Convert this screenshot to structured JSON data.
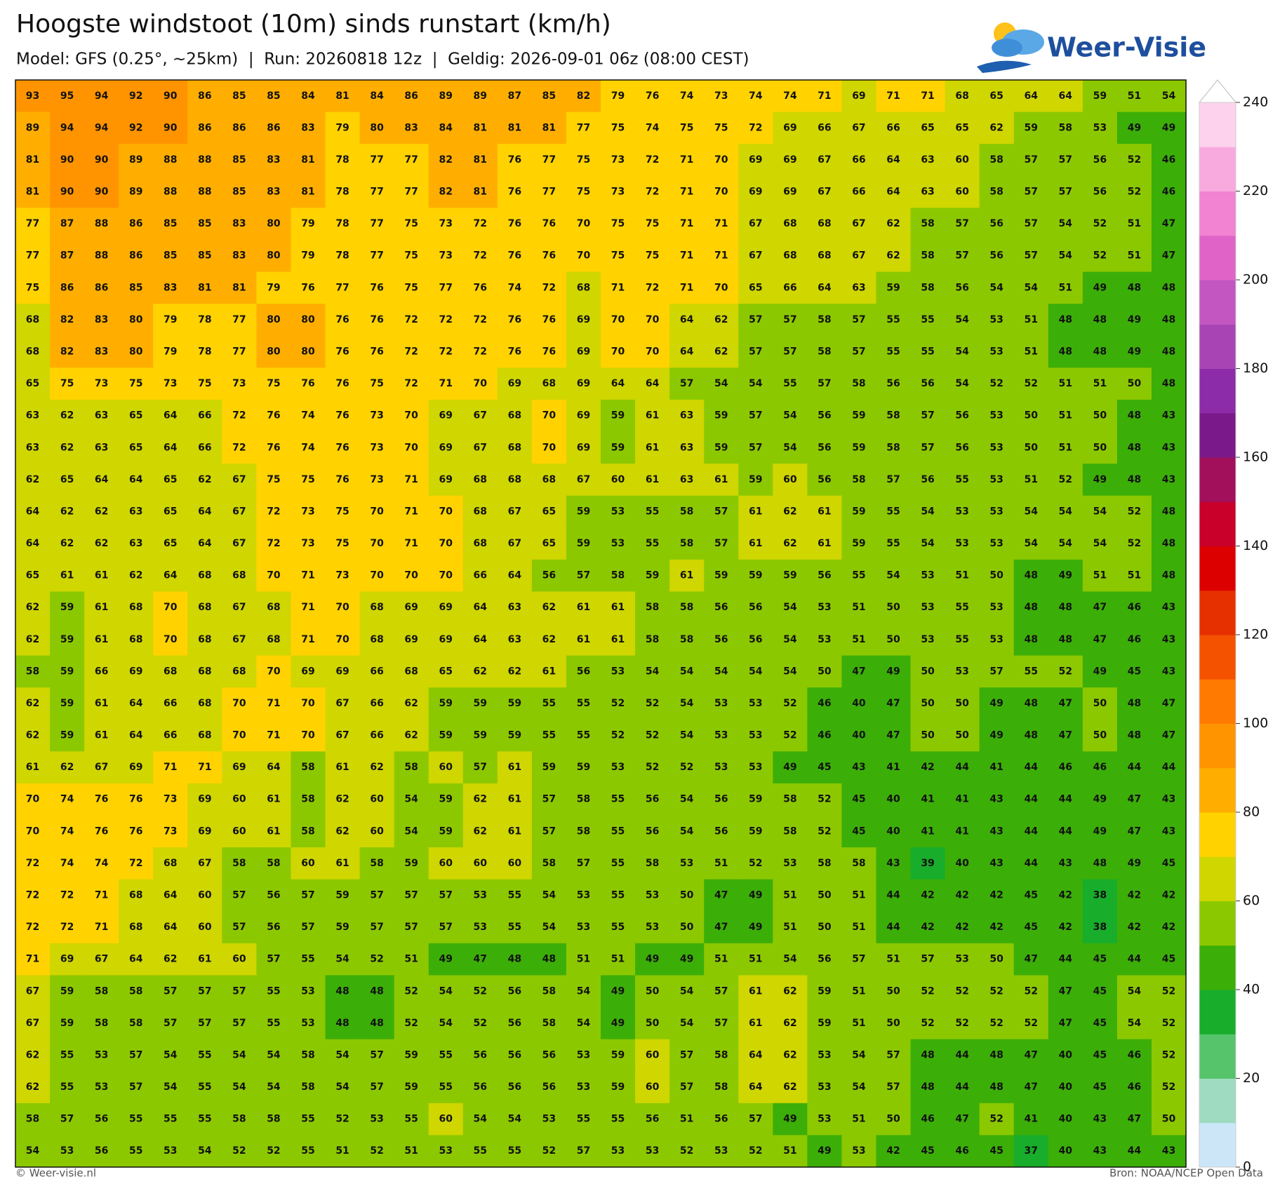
{
  "header": {
    "title": "Hoogste windstoot (10m) sinds runstart (km/h)",
    "subtitle": "Model: GFS (0.25°, ~25km)  |  Run: 20260818 12z  |  Geldig: 2026-09-01 06z (08:00 CEST)",
    "logo": "Weer-Visie"
  },
  "footer": {
    "left": "© Weer-visie.nl",
    "right": "Bron: NOAA/NCEP Open Data"
  },
  "colorbar": {
    "bounds": [
      0,
      10,
      20,
      30,
      40,
      50,
      60,
      70,
      80,
      90,
      100,
      110,
      120,
      130,
      140,
      150,
      160,
      170,
      180,
      190,
      200,
      210,
      220,
      230,
      240
    ],
    "colors": [
      "#cce6f8",
      "#9edbc0",
      "#55c46a",
      "#18ad2a",
      "#3cae08",
      "#8cc800",
      "#d0d600",
      "#ffd200",
      "#ffae00",
      "#ff9400",
      "#ff7a00",
      "#f55200",
      "#e63000",
      "#dd0000",
      "#c8002a",
      "#a2105c",
      "#7a1a8a",
      "#8c2ca8",
      "#a844b4",
      "#c456c2",
      "#e064c8",
      "#f282d2",
      "#f8aade",
      "#fcd2ec"
    ],
    "ticks": [
      0,
      20,
      40,
      60,
      80,
      100,
      120,
      140,
      160,
      180,
      200,
      220,
      240
    ]
  },
  "grid": {
    "rows": [
      [
        93,
        95,
        94,
        92,
        90,
        86,
        85,
        85,
        84,
        81,
        84,
        86,
        89,
        89,
        87,
        85,
        82,
        79,
        76,
        74,
        73,
        74,
        74,
        71,
        69,
        71,
        71,
        68,
        65,
        64,
        64,
        59,
        51,
        54
      ],
      [
        89,
        94,
        94,
        92,
        90,
        86,
        86,
        86,
        83,
        79,
        80,
        83,
        84,
        81,
        81,
        81,
        77,
        75,
        74,
        75,
        75,
        72,
        69,
        66,
        67,
        66,
        65,
        65,
        62,
        59,
        58,
        53,
        49,
        49
      ],
      [
        81,
        90,
        90,
        89,
        88,
        88,
        85,
        83,
        81,
        78,
        77,
        77,
        82,
        81,
        76,
        77,
        75,
        73,
        72,
        71,
        70,
        69,
        69,
        67,
        66,
        64,
        63,
        60,
        58,
        57,
        57,
        56,
        52,
        46
      ],
      [
        81,
        90,
        90,
        89,
        88,
        88,
        85,
        83,
        81,
        78,
        77,
        77,
        82,
        81,
        76,
        77,
        75,
        73,
        72,
        71,
        70,
        69,
        69,
        67,
        66,
        64,
        63,
        60,
        58,
        57,
        57,
        56,
        52,
        46
      ],
      [
        77,
        87,
        88,
        86,
        85,
        85,
        83,
        80,
        79,
        78,
        77,
        75,
        73,
        72,
        76,
        76,
        70,
        75,
        75,
        71,
        71,
        67,
        68,
        68,
        67,
        62,
        58,
        57,
        56,
        57,
        54,
        52,
        51,
        47
      ],
      [
        77,
        87,
        88,
        86,
        85,
        85,
        83,
        80,
        79,
        78,
        77,
        75,
        73,
        72,
        76,
        76,
        70,
        75,
        75,
        71,
        71,
        67,
        68,
        68,
        67,
        62,
        58,
        57,
        56,
        57,
        54,
        52,
        51,
        47
      ],
      [
        75,
        86,
        86,
        85,
        83,
        81,
        81,
        79,
        76,
        77,
        76,
        75,
        77,
        76,
        74,
        72,
        68,
        71,
        72,
        71,
        70,
        65,
        66,
        64,
        63,
        59,
        58,
        56,
        54,
        54,
        51,
        49,
        48,
        48
      ],
      [
        68,
        82,
        83,
        80,
        79,
        78,
        77,
        80,
        80,
        76,
        76,
        72,
        72,
        72,
        76,
        76,
        69,
        70,
        70,
        64,
        62,
        57,
        57,
        58,
        57,
        55,
        55,
        54,
        53,
        51,
        48,
        48,
        49,
        48
      ],
      [
        68,
        82,
        83,
        80,
        79,
        78,
        77,
        80,
        80,
        76,
        76,
        72,
        72,
        72,
        76,
        76,
        69,
        70,
        70,
        64,
        62,
        57,
        57,
        58,
        57,
        55,
        55,
        54,
        53,
        51,
        48,
        48,
        49,
        48
      ],
      [
        65,
        75,
        73,
        75,
        73,
        75,
        73,
        75,
        76,
        76,
        75,
        72,
        71,
        70,
        69,
        68,
        69,
        64,
        64,
        57,
        54,
        54,
        55,
        57,
        58,
        56,
        56,
        54,
        52,
        52,
        51,
        51,
        50,
        48
      ],
      [
        63,
        62,
        63,
        65,
        64,
        66,
        72,
        76,
        74,
        76,
        73,
        70,
        69,
        67,
        68,
        70,
        69,
        59,
        61,
        63,
        59,
        57,
        54,
        56,
        59,
        58,
        57,
        56,
        53,
        50,
        51,
        50,
        48,
        43
      ],
      [
        63,
        62,
        63,
        65,
        64,
        66,
        72,
        76,
        74,
        76,
        73,
        70,
        69,
        67,
        68,
        70,
        69,
        59,
        61,
        63,
        59,
        57,
        54,
        56,
        59,
        58,
        57,
        56,
        53,
        50,
        51,
        50,
        48,
        43
      ],
      [
        62,
        65,
        64,
        64,
        65,
        62,
        67,
        75,
        75,
        76,
        73,
        71,
        69,
        68,
        68,
        68,
        67,
        60,
        61,
        63,
        61,
        59,
        60,
        56,
        58,
        57,
        56,
        55,
        53,
        51,
        52,
        49,
        48,
        43
      ],
      [
        64,
        62,
        62,
        63,
        65,
        64,
        67,
        72,
        73,
        75,
        70,
        71,
        70,
        68,
        67,
        65,
        59,
        53,
        55,
        58,
        57,
        61,
        62,
        61,
        59,
        55,
        54,
        53,
        53,
        54,
        54,
        54,
        52,
        48
      ],
      [
        64,
        62,
        62,
        63,
        65,
        64,
        67,
        72,
        73,
        75,
        70,
        71,
        70,
        68,
        67,
        65,
        59,
        53,
        55,
        58,
        57,
        61,
        62,
        61,
        59,
        55,
        54,
        53,
        53,
        54,
        54,
        54,
        52,
        48
      ],
      [
        65,
        61,
        61,
        62,
        64,
        68,
        68,
        70,
        71,
        73,
        70,
        70,
        70,
        66,
        64,
        56,
        57,
        58,
        59,
        61,
        59,
        59,
        59,
        56,
        55,
        54,
        53,
        51,
        50,
        48,
        49,
        51,
        51,
        48
      ],
      [
        62,
        59,
        61,
        68,
        70,
        68,
        67,
        68,
        71,
        70,
        68,
        69,
        69,
        64,
        63,
        62,
        61,
        61,
        58,
        58,
        56,
        56,
        54,
        53,
        51,
        50,
        53,
        55,
        53,
        48,
        48,
        47,
        46,
        43
      ],
      [
        62,
        59,
        61,
        68,
        70,
        68,
        67,
        68,
        71,
        70,
        68,
        69,
        69,
        64,
        63,
        62,
        61,
        61,
        58,
        58,
        56,
        56,
        54,
        53,
        51,
        50,
        53,
        55,
        53,
        48,
        48,
        47,
        46,
        43
      ],
      [
        58,
        59,
        66,
        69,
        68,
        68,
        68,
        70,
        69,
        69,
        66,
        68,
        65,
        62,
        62,
        61,
        56,
        53,
        54,
        54,
        54,
        54,
        54,
        50,
        47,
        49,
        50,
        53,
        57,
        55,
        52,
        49,
        45,
        43
      ],
      [
        62,
        59,
        61,
        64,
        66,
        68,
        70,
        71,
        70,
        67,
        66,
        62,
        59,
        59,
        59,
        55,
        55,
        52,
        52,
        54,
        53,
        53,
        52,
        46,
        40,
        47,
        50,
        50,
        49,
        48,
        47,
        50,
        48,
        47
      ],
      [
        62,
        59,
        61,
        64,
        66,
        68,
        70,
        71,
        70,
        67,
        66,
        62,
        59,
        59,
        59,
        55,
        55,
        52,
        52,
        54,
        53,
        53,
        52,
        46,
        40,
        47,
        50,
        50,
        49,
        48,
        47,
        50,
        48,
        47
      ],
      [
        61,
        62,
        67,
        69,
        71,
        71,
        69,
        64,
        58,
        61,
        62,
        58,
        60,
        57,
        61,
        59,
        59,
        53,
        52,
        52,
        53,
        53,
        49,
        45,
        43,
        41,
        42,
        44,
        41,
        44,
        46,
        46,
        44,
        44
      ],
      [
        70,
        74,
        76,
        76,
        73,
        69,
        60,
        61,
        58,
        62,
        60,
        54,
        59,
        62,
        61,
        57,
        58,
        55,
        56,
        54,
        56,
        59,
        58,
        52,
        45,
        40,
        41,
        41,
        43,
        44,
        44,
        49,
        47,
        43
      ],
      [
        70,
        74,
        76,
        76,
        73,
        69,
        60,
        61,
        58,
        62,
        60,
        54,
        59,
        62,
        61,
        57,
        58,
        55,
        56,
        54,
        56,
        59,
        58,
        52,
        45,
        40,
        41,
        41,
        43,
        44,
        44,
        49,
        47,
        43
      ],
      [
        72,
        74,
        74,
        72,
        68,
        67,
        58,
        58,
        60,
        61,
        58,
        59,
        60,
        60,
        60,
        58,
        57,
        55,
        58,
        53,
        51,
        52,
        53,
        58,
        58,
        43,
        39,
        40,
        43,
        44,
        43,
        48,
        49,
        45
      ],
      [
        72,
        72,
        71,
        68,
        64,
        60,
        57,
        56,
        57,
        59,
        57,
        57,
        57,
        53,
        55,
        54,
        53,
        55,
        53,
        50,
        47,
        49,
        51,
        50,
        51,
        44,
        42,
        42,
        42,
        45,
        42,
        38,
        42,
        42
      ],
      [
        72,
        72,
        71,
        68,
        64,
        60,
        57,
        56,
        57,
        59,
        57,
        57,
        57,
        53,
        55,
        54,
        53,
        55,
        53,
        50,
        47,
        49,
        51,
        50,
        51,
        44,
        42,
        42,
        42,
        45,
        42,
        38,
        42,
        42
      ],
      [
        71,
        69,
        67,
        64,
        62,
        61,
        60,
        57,
        55,
        54,
        52,
        51,
        49,
        47,
        48,
        48,
        51,
        51,
        49,
        49,
        51,
        51,
        54,
        56,
        57,
        51,
        57,
        53,
        50,
        47,
        44,
        45,
        44,
        45
      ],
      [
        67,
        59,
        58,
        58,
        57,
        57,
        57,
        55,
        53,
        48,
        48,
        52,
        54,
        52,
        56,
        58,
        54,
        49,
        50,
        54,
        57,
        61,
        62,
        59,
        51,
        50,
        52,
        52,
        52,
        52,
        47,
        45,
        54,
        52
      ],
      [
        67,
        59,
        58,
        58,
        57,
        57,
        57,
        55,
        53,
        48,
        48,
        52,
        54,
        52,
        56,
        58,
        54,
        49,
        50,
        54,
        57,
        61,
        62,
        59,
        51,
        50,
        52,
        52,
        52,
        52,
        47,
        45,
        54,
        52
      ],
      [
        62,
        55,
        53,
        57,
        54,
        55,
        54,
        54,
        58,
        54,
        57,
        59,
        55,
        56,
        56,
        56,
        53,
        59,
        60,
        57,
        58,
        64,
        62,
        53,
        54,
        57,
        48,
        44,
        48,
        47,
        40,
        45,
        46,
        52
      ],
      [
        62,
        55,
        53,
        57,
        54,
        55,
        54,
        54,
        58,
        54,
        57,
        59,
        55,
        56,
        56,
        56,
        53,
        59,
        60,
        57,
        58,
        64,
        62,
        53,
        54,
        57,
        48,
        44,
        48,
        47,
        40,
        45,
        46,
        52
      ],
      [
        58,
        57,
        56,
        55,
        55,
        55,
        58,
        58,
        55,
        52,
        53,
        55,
        60,
        54,
        54,
        53,
        55,
        55,
        56,
        51,
        56,
        57,
        49,
        53,
        51,
        50,
        46,
        47,
        52,
        41,
        40,
        43,
        47,
        50
      ],
      [
        54,
        53,
        56,
        55,
        53,
        54,
        52,
        52,
        55,
        51,
        52,
        51,
        53,
        55,
        55,
        52,
        57,
        53,
        53,
        52,
        53,
        52,
        51,
        49,
        53,
        42,
        45,
        46,
        45,
        37,
        40,
        43,
        44,
        43
      ]
    ]
  }
}
